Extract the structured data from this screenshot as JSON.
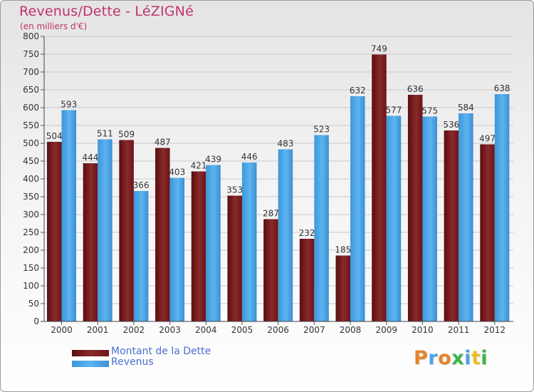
{
  "title": "Revenus/Dette - LéZIGNé",
  "subtitle": "(en milliers d'€)",
  "logo_text": "Proxiti",
  "colors": {
    "title": "#c0326a",
    "dette": "#7a1c1e",
    "revenus": "#4aa3e6",
    "legend_text": "#4a6fd0"
  },
  "chart_data": {
    "type": "bar",
    "title": "Revenus/Dette - LéZIGNé",
    "subtitle": "(en milliers d'€)",
    "xlabel": "",
    "ylabel": "",
    "ylim": [
      0,
      800
    ],
    "ytick_step": 50,
    "grid": true,
    "legend_position": "bottom-left",
    "categories": [
      "2000",
      "2001",
      "2002",
      "2003",
      "2004",
      "2005",
      "2006",
      "2007",
      "2008",
      "2009",
      "2010",
      "2011",
      "2012"
    ],
    "series": [
      {
        "name": "Montant de la Dette",
        "color": "#7a1c1e",
        "values": [
          504,
          444,
          509,
          487,
          421,
          353,
          287,
          232,
          185,
          749,
          636,
          536,
          497
        ]
      },
      {
        "name": "Revenus",
        "color": "#4aa3e6",
        "values": [
          593,
          511,
          366,
          403,
          439,
          446,
          483,
          523,
          632,
          577,
          575,
          584,
          638
        ]
      }
    ]
  }
}
